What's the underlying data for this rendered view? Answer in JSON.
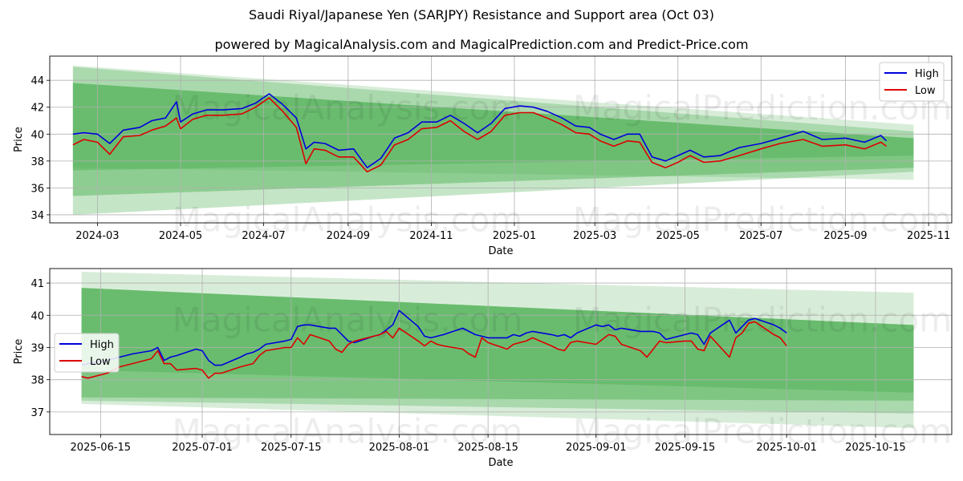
{
  "title": "Saudi Riyal/Japanese Yen (SARJPY) Resistance and Support area (Oct 03)",
  "subtitle": "powered by MagicalAnalysis.com and MagicalPrediction.com and Predict-Price.com",
  "watermarks": [
    "MagicalAnalysis.com",
    "MagicalPrediction.com"
  ],
  "colors": {
    "high": "#0000dd",
    "low": "#dd0000",
    "band": "#4caf50",
    "grid": "#b0b0b0"
  },
  "chart_data": [
    {
      "type": "line",
      "name": "full-history",
      "xlabel": "Date",
      "ylabel": "Price",
      "ylim": [
        33.4,
        45.8
      ],
      "xlim": [
        "2024-01-26",
        "2025-11-18"
      ],
      "x_ticks": [
        "2024-03",
        "2024-05",
        "2024-07",
        "2024-09",
        "2024-11",
        "2025-01",
        "2025-03",
        "2025-05",
        "2025-07",
        "2025-09",
        "2025-11"
      ],
      "y_ticks": [
        34,
        36,
        38,
        40,
        42,
        44
      ],
      "grid": true,
      "legend": {
        "position": "top-right",
        "entries": [
          "High",
          "Low"
        ]
      },
      "band_range": [
        "2024-02-12",
        "2025-10-21"
      ],
      "bands": [
        {
          "start": [
            37.5,
            45.1
          ],
          "end": [
            36.6,
            40.7
          ],
          "opacity": 0.22
        },
        {
          "start": [
            34.0,
            45.0
          ],
          "end": [
            37.2,
            40.2
          ],
          "opacity": 0.32
        },
        {
          "start": [
            35.4,
            43.8
          ],
          "end": [
            37.5,
            39.7
          ],
          "opacity": 0.45
        },
        {
          "start": [
            37.3,
            43.8
          ],
          "end": [
            38.4,
            39.7
          ],
          "opacity": 0.42
        }
      ],
      "series": [
        {
          "name": "High",
          "x": [
            "2024-02-12",
            "2024-02-20",
            "2024-03-01",
            "2024-03-10",
            "2024-03-20",
            "2024-04-01",
            "2024-04-10",
            "2024-04-20",
            "2024-04-28",
            "2024-05-01",
            "2024-05-10",
            "2024-05-20",
            "2024-06-01",
            "2024-06-15",
            "2024-06-25",
            "2024-07-05",
            "2024-07-15",
            "2024-07-25",
            "2024-08-01",
            "2024-08-07",
            "2024-08-15",
            "2024-08-25",
            "2024-09-05",
            "2024-09-15",
            "2024-09-25",
            "2024-10-05",
            "2024-10-15",
            "2024-10-25",
            "2024-11-05",
            "2024-11-15",
            "2024-11-25",
            "2024-12-05",
            "2024-12-15",
            "2024-12-25",
            "2025-01-05",
            "2025-01-15",
            "2025-01-25",
            "2025-02-05",
            "2025-02-15",
            "2025-02-25",
            "2025-03-05",
            "2025-03-15",
            "2025-03-25",
            "2025-04-03",
            "2025-04-12",
            "2025-04-22",
            "2025-05-01",
            "2025-05-10",
            "2025-05-20",
            "2025-06-01",
            "2025-06-15",
            "2025-07-01",
            "2025-07-15",
            "2025-08-01",
            "2025-08-15",
            "2025-09-01",
            "2025-09-15",
            "2025-09-27",
            "2025-10-01"
          ],
          "values": [
            40.0,
            40.1,
            40.0,
            39.3,
            40.3,
            40.5,
            41.0,
            41.2,
            42.4,
            40.9,
            41.5,
            41.8,
            41.8,
            41.9,
            42.3,
            43.0,
            42.2,
            41.2,
            38.9,
            39.4,
            39.3,
            38.8,
            38.9,
            37.5,
            38.2,
            39.7,
            40.1,
            40.9,
            40.9,
            41.4,
            40.8,
            40.1,
            40.8,
            41.9,
            42.1,
            42.0,
            41.7,
            41.2,
            40.6,
            40.5,
            40.0,
            39.6,
            40.0,
            40.0,
            38.3,
            38.0,
            38.4,
            38.8,
            38.3,
            38.4,
            39.0,
            39.3,
            39.7,
            40.2,
            39.6,
            39.7,
            39.4,
            39.9,
            39.5
          ]
        },
        {
          "name": "Low",
          "x": [
            "2024-02-12",
            "2024-02-20",
            "2024-03-01",
            "2024-03-10",
            "2024-03-20",
            "2024-04-01",
            "2024-04-10",
            "2024-04-20",
            "2024-04-28",
            "2024-05-01",
            "2024-05-10",
            "2024-05-20",
            "2024-06-01",
            "2024-06-15",
            "2024-06-25",
            "2024-07-05",
            "2024-07-15",
            "2024-07-25",
            "2024-08-01",
            "2024-08-07",
            "2024-08-15",
            "2024-08-25",
            "2024-09-05",
            "2024-09-15",
            "2024-09-25",
            "2024-10-05",
            "2024-10-15",
            "2024-10-25",
            "2024-11-05",
            "2024-11-15",
            "2024-11-25",
            "2024-12-05",
            "2024-12-15",
            "2024-12-25",
            "2025-01-05",
            "2025-01-15",
            "2025-01-25",
            "2025-02-05",
            "2025-02-15",
            "2025-02-25",
            "2025-03-05",
            "2025-03-15",
            "2025-03-25",
            "2025-04-03",
            "2025-04-12",
            "2025-04-22",
            "2025-05-01",
            "2025-05-10",
            "2025-05-20",
            "2025-06-01",
            "2025-06-15",
            "2025-07-01",
            "2025-07-15",
            "2025-08-01",
            "2025-08-15",
            "2025-09-01",
            "2025-09-15",
            "2025-09-27",
            "2025-10-01"
          ],
          "values": [
            39.2,
            39.6,
            39.4,
            38.5,
            39.8,
            39.9,
            40.3,
            40.6,
            41.2,
            40.4,
            41.1,
            41.4,
            41.4,
            41.5,
            42.0,
            42.7,
            41.7,
            40.5,
            37.8,
            38.9,
            38.8,
            38.3,
            38.3,
            37.2,
            37.7,
            39.2,
            39.6,
            40.4,
            40.5,
            41.0,
            40.2,
            39.6,
            40.2,
            41.4,
            41.6,
            41.6,
            41.2,
            40.7,
            40.1,
            40.0,
            39.5,
            39.1,
            39.5,
            39.4,
            37.9,
            37.5,
            37.9,
            38.4,
            37.9,
            38.0,
            38.4,
            38.9,
            39.3,
            39.6,
            39.1,
            39.2,
            38.9,
            39.4,
            39.1
          ]
        }
      ]
    },
    {
      "type": "line",
      "name": "recent-zoom",
      "xlabel": "Date",
      "ylabel": "Price",
      "ylim": [
        36.3,
        41.45
      ],
      "xlim": [
        "2025-06-07",
        "2025-10-27"
      ],
      "x_ticks": [
        "2025-06-15",
        "2025-07-01",
        "2025-07-15",
        "2025-08-01",
        "2025-08-15",
        "2025-09-01",
        "2025-09-15",
        "2025-10-01",
        "2025-10-15"
      ],
      "y_ticks": [
        37,
        38,
        39,
        40,
        41
      ],
      "grid": true,
      "legend": {
        "position": "center-left",
        "entries": [
          "High",
          "Low"
        ]
      },
      "band_range": [
        "2025-06-12",
        "2025-10-21"
      ],
      "bands": [
        {
          "start": [
            37.25,
            41.35
          ],
          "end": [
            36.5,
            40.7
          ],
          "opacity": 0.22
        },
        {
          "start": [
            37.35,
            40.85
          ],
          "end": [
            36.95,
            39.7
          ],
          "opacity": 0.32
        },
        {
          "start": [
            37.45,
            40.85
          ],
          "end": [
            37.35,
            39.7
          ],
          "opacity": 0.45
        },
        {
          "start": [
            38.3,
            40.85
          ],
          "end": [
            37.6,
            39.7
          ],
          "opacity": 0.42
        }
      ],
      "series": [
        {
          "name": "High",
          "x": [
            "2025-06-12",
            "2025-06-13",
            "2025-06-16",
            "2025-06-17",
            "2025-06-18",
            "2025-06-19",
            "2025-06-20",
            "2025-06-23",
            "2025-06-24",
            "2025-06-25",
            "2025-06-26",
            "2025-06-27",
            "2025-06-30",
            "2025-07-01",
            "2025-07-02",
            "2025-07-03",
            "2025-07-04",
            "2025-07-07",
            "2025-07-08",
            "2025-07-09",
            "2025-07-10",
            "2025-07-11",
            "2025-07-14",
            "2025-07-15",
            "2025-07-16",
            "2025-07-17",
            "2025-07-18",
            "2025-07-21",
            "2025-07-22",
            "2025-07-23",
            "2025-07-24",
            "2025-07-25",
            "2025-07-28",
            "2025-07-29",
            "2025-07-30",
            "2025-07-31",
            "2025-08-01",
            "2025-08-04",
            "2025-08-05",
            "2025-08-06",
            "2025-08-07",
            "2025-08-08",
            "2025-08-11",
            "2025-08-12",
            "2025-08-13",
            "2025-08-14",
            "2025-08-15",
            "2025-08-18",
            "2025-08-19",
            "2025-08-20",
            "2025-08-21",
            "2025-08-22",
            "2025-08-25",
            "2025-08-26",
            "2025-08-27",
            "2025-08-28",
            "2025-08-29",
            "2025-09-01",
            "2025-09-02",
            "2025-09-03",
            "2025-09-04",
            "2025-09-05",
            "2025-09-08",
            "2025-09-09",
            "2025-09-10",
            "2025-09-11",
            "2025-09-12",
            "2025-09-15",
            "2025-09-16",
            "2025-09-17",
            "2025-09-18",
            "2025-09-19",
            "2025-09-22",
            "2025-09-23",
            "2025-09-24",
            "2025-09-25",
            "2025-09-26",
            "2025-09-29",
            "2025-09-30",
            "2025-10-01"
          ],
          "values": [
            38.45,
            38.5,
            38.6,
            38.65,
            38.7,
            38.75,
            38.8,
            38.9,
            39.0,
            38.6,
            38.7,
            38.75,
            38.95,
            38.9,
            38.6,
            38.45,
            38.45,
            38.7,
            38.8,
            38.85,
            38.95,
            39.1,
            39.2,
            39.25,
            39.65,
            39.7,
            39.7,
            39.6,
            39.6,
            39.4,
            39.2,
            39.15,
            39.35,
            39.4,
            39.55,
            39.7,
            40.15,
            39.65,
            39.35,
            39.3,
            39.35,
            39.4,
            39.6,
            39.5,
            39.4,
            39.35,
            39.3,
            39.3,
            39.4,
            39.35,
            39.45,
            39.5,
            39.4,
            39.35,
            39.4,
            39.3,
            39.45,
            39.7,
            39.65,
            39.7,
            39.55,
            39.6,
            39.5,
            39.5,
            39.5,
            39.45,
            39.25,
            39.4,
            39.45,
            39.4,
            39.1,
            39.45,
            39.85,
            39.45,
            39.65,
            39.85,
            39.9,
            39.7,
            39.6,
            39.45
          ]
        },
        {
          "name": "Low",
          "x": [
            "2025-06-12",
            "2025-06-13",
            "2025-06-16",
            "2025-06-17",
            "2025-06-18",
            "2025-06-19",
            "2025-06-20",
            "2025-06-23",
            "2025-06-24",
            "2025-06-25",
            "2025-06-26",
            "2025-06-27",
            "2025-06-30",
            "2025-07-01",
            "2025-07-02",
            "2025-07-03",
            "2025-07-04",
            "2025-07-07",
            "2025-07-08",
            "2025-07-09",
            "2025-07-10",
            "2025-07-11",
            "2025-07-14",
            "2025-07-15",
            "2025-07-16",
            "2025-07-17",
            "2025-07-18",
            "2025-07-21",
            "2025-07-22",
            "2025-07-23",
            "2025-07-24",
            "2025-07-25",
            "2025-07-28",
            "2025-07-29",
            "2025-07-30",
            "2025-07-31",
            "2025-08-01",
            "2025-08-04",
            "2025-08-05",
            "2025-08-06",
            "2025-08-07",
            "2025-08-08",
            "2025-08-11",
            "2025-08-12",
            "2025-08-13",
            "2025-08-14",
            "2025-08-15",
            "2025-08-18",
            "2025-08-19",
            "2025-08-20",
            "2025-08-21",
            "2025-08-22",
            "2025-08-25",
            "2025-08-26",
            "2025-08-27",
            "2025-08-28",
            "2025-08-29",
            "2025-09-01",
            "2025-09-02",
            "2025-09-03",
            "2025-09-04",
            "2025-09-05",
            "2025-09-08",
            "2025-09-09",
            "2025-09-10",
            "2025-09-11",
            "2025-09-12",
            "2025-09-15",
            "2025-09-16",
            "2025-09-17",
            "2025-09-18",
            "2025-09-19",
            "2025-09-22",
            "2025-09-23",
            "2025-09-24",
            "2025-09-25",
            "2025-09-26",
            "2025-09-29",
            "2025-09-30",
            "2025-10-01"
          ],
          "values": [
            38.1,
            38.05,
            38.2,
            38.3,
            38.4,
            38.45,
            38.5,
            38.65,
            38.9,
            38.5,
            38.5,
            38.3,
            38.35,
            38.3,
            38.05,
            38.2,
            38.2,
            38.4,
            38.45,
            38.5,
            38.75,
            38.9,
            39.0,
            39.0,
            39.3,
            39.1,
            39.4,
            39.2,
            38.95,
            38.85,
            39.1,
            39.2,
            39.35,
            39.4,
            39.5,
            39.3,
            39.6,
            39.2,
            39.05,
            39.2,
            39.1,
            39.05,
            38.95,
            38.8,
            38.7,
            39.3,
            39.15,
            38.95,
            39.1,
            39.15,
            39.2,
            39.3,
            39.05,
            38.95,
            38.9,
            39.15,
            39.2,
            39.1,
            39.25,
            39.4,
            39.35,
            39.1,
            38.9,
            38.7,
            38.95,
            39.2,
            39.15,
            39.2,
            39.2,
            38.95,
            38.9,
            39.35,
            38.7,
            39.3,
            39.45,
            39.75,
            39.8,
            39.4,
            39.3,
            39.05
          ]
        }
      ]
    }
  ]
}
